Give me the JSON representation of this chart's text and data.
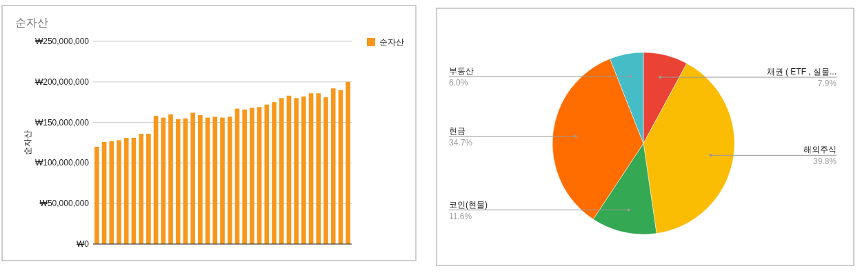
{
  "chart_data": [
    {
      "type": "bar",
      "title": "순자산",
      "ylabel": "순자산",
      "categories": [
        null,
        null,
        null,
        null,
        null,
        null,
        null,
        null,
        null,
        null,
        null,
        null,
        null,
        null,
        null,
        null,
        null,
        null,
        null,
        null,
        null,
        null,
        null,
        null,
        null,
        null,
        null,
        null,
        null,
        null,
        null,
        null,
        null,
        null,
        null
      ],
      "series": [
        {
          "name": "순자산",
          "color": "#f7981d",
          "values": [
            120000000,
            126000000,
            127000000,
            128000000,
            131000000,
            131000000,
            136000000,
            136000000,
            158000000,
            156000000,
            160000000,
            154000000,
            155000000,
            162000000,
            159000000,
            156000000,
            157000000,
            156000000,
            157000000,
            167000000,
            166000000,
            168000000,
            169000000,
            172000000,
            175000000,
            180000000,
            183000000,
            180000000,
            182000000,
            186000000,
            186000000,
            181000000,
            192000000,
            190000000,
            200000000
          ]
        }
      ],
      "ylim": [
        0,
        250000000
      ],
      "yticks": [
        {
          "value": 0,
          "label": "₩0"
        },
        {
          "value": 50000000,
          "label": "₩50,000,000"
        },
        {
          "value": 100000000,
          "label": "₩100,000,000"
        },
        {
          "value": 150000000,
          "label": "₩150,000,000"
        },
        {
          "value": 200000000,
          "label": "₩200,000,000"
        },
        {
          "value": 250000000,
          "label": "₩250,000,000"
        }
      ],
      "grid": "y",
      "legend": "top right",
      "tick_labels": "y"
    },
    {
      "type": "pie",
      "categories": [
        "채권 ( ETF , 실물...",
        "해외주식",
        "코인(현물)",
        "현금",
        "부동산"
      ],
      "values": [
        7.9,
        39.8,
        11.6,
        34.7,
        6.0
      ],
      "colors": [
        "#ea4335",
        "#fbbc04",
        "#34a853",
        "#ff6d01",
        "#46bdc6"
      ],
      "value_labels": [
        "7.9%",
        "39.8%",
        "11.6%",
        "34.7%",
        "6.0%"
      ]
    }
  ]
}
